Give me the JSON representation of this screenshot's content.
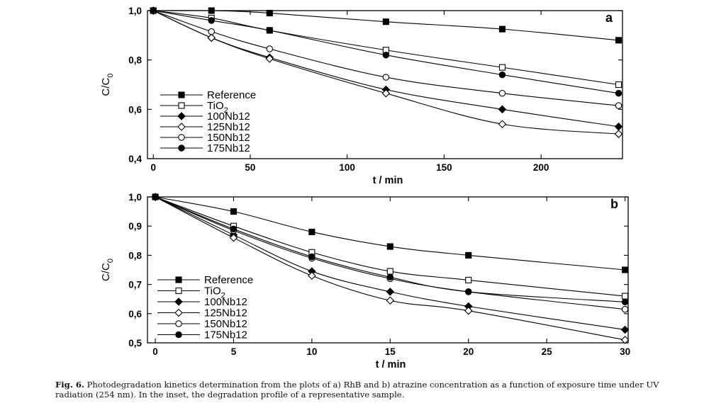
{
  "chart_data": [
    {
      "type": "line",
      "panel_label": "a",
      "title": "",
      "xlabel": "t / min",
      "ylabel": "C/C0",
      "ylabel_main": "C/C",
      "ylabel_sub": "0",
      "xlim": [
        -3,
        242
      ],
      "ylim": [
        0.4,
        1.0
      ],
      "xticks": [
        0,
        50,
        100,
        150,
        200
      ],
      "yticks": [
        0.4,
        0.6,
        0.8,
        1.0
      ],
      "ytick_labels": [
        "0,4",
        "0,6",
        "0,8",
        "1,0"
      ],
      "xtick_labels": [
        "0",
        "50",
        "100",
        "150",
        "200"
      ],
      "series": [
        {
          "name": "Reference",
          "marker": "square-filled",
          "x": [
            0,
            30,
            60,
            120,
            180,
            240
          ],
          "y": [
            1.0,
            1.0,
            0.99,
            0.955,
            0.925,
            0.88
          ]
        },
        {
          "name": "TiO2",
          "name_main": "TiO",
          "name_sub": "2",
          "marker": "square-open",
          "x": [
            0,
            30,
            60,
            120,
            180,
            240
          ],
          "y": [
            1.0,
            0.97,
            0.92,
            0.84,
            0.77,
            0.7
          ]
        },
        {
          "name": "100Nb12",
          "marker": "diamond-filled",
          "x": [
            0,
            30,
            60,
            120,
            180,
            240
          ],
          "y": [
            1.0,
            0.89,
            0.81,
            0.68,
            0.6,
            0.53
          ]
        },
        {
          "name": "125Nb12",
          "marker": "diamond-open",
          "x": [
            0,
            30,
            60,
            120,
            180,
            240
          ],
          "y": [
            1.0,
            0.89,
            0.805,
            0.665,
            0.54,
            0.5
          ]
        },
        {
          "name": "150Nb12",
          "marker": "circle-open",
          "x": [
            0,
            30,
            60,
            120,
            180,
            240
          ],
          "y": [
            1.0,
            0.915,
            0.845,
            0.73,
            0.665,
            0.615
          ]
        },
        {
          "name": "175Nb12",
          "marker": "circle-filled",
          "x": [
            0,
            30,
            60,
            120,
            180,
            240
          ],
          "y": [
            1.0,
            0.96,
            0.92,
            0.82,
            0.74,
            0.665
          ]
        }
      ],
      "legend_position": "lower-left",
      "grid": false
    },
    {
      "type": "line",
      "panel_label": "b",
      "title": "",
      "xlabel": "t / min",
      "ylabel": "C/C0",
      "ylabel_main": "C/C",
      "ylabel_sub": "0",
      "xlim": [
        -0.5,
        30.2
      ],
      "ylim": [
        0.5,
        1.0
      ],
      "xticks": [
        0,
        5,
        10,
        15,
        20,
        25,
        30
      ],
      "yticks": [
        0.5,
        0.6,
        0.7,
        0.8,
        0.9,
        1.0
      ],
      "ytick_labels": [
        "0,5",
        "0,6",
        "0,7",
        "0,8",
        "0,9",
        "1,0"
      ],
      "xtick_labels": [
        "0",
        "5",
        "10",
        "15",
        "20",
        "25",
        "30"
      ],
      "series": [
        {
          "name": "Reference",
          "marker": "square-filled",
          "x": [
            0,
            5,
            10,
            15,
            20,
            30
          ],
          "y": [
            1.0,
            0.95,
            0.88,
            0.83,
            0.8,
            0.75
          ]
        },
        {
          "name": "TiO2",
          "name_main": "TiO",
          "name_sub": "2",
          "marker": "square-open",
          "x": [
            0,
            5,
            10,
            15,
            20,
            30
          ],
          "y": [
            1.0,
            0.9,
            0.81,
            0.745,
            0.715,
            0.66
          ]
        },
        {
          "name": "100Nb12",
          "marker": "diamond-filled",
          "x": [
            0,
            5,
            10,
            15,
            20,
            30
          ],
          "y": [
            1.0,
            0.87,
            0.745,
            0.675,
            0.625,
            0.545
          ]
        },
        {
          "name": "125Nb12",
          "marker": "diamond-open",
          "x": [
            0,
            5,
            10,
            15,
            20,
            30
          ],
          "y": [
            1.0,
            0.86,
            0.73,
            0.645,
            0.61,
            0.51
          ]
        },
        {
          "name": "150Nb12",
          "marker": "circle-open",
          "x": [
            0,
            5,
            10,
            15,
            20,
            30
          ],
          "y": [
            1.0,
            0.885,
            0.79,
            0.72,
            0.675,
            0.615
          ]
        },
        {
          "name": "175Nb12",
          "marker": "circle-filled",
          "x": [
            0,
            5,
            10,
            15,
            20,
            30
          ],
          "y": [
            1.0,
            0.89,
            0.795,
            0.725,
            0.675,
            0.64
          ]
        }
      ],
      "legend_position": "lower-left",
      "grid": false
    }
  ],
  "caption": {
    "label": "Fig. 6.",
    "text": "Photodegradation kinetics determination from the plots of a) RhB and b) atrazine concentration as a function of exposure time under UV radiation (254 nm). In the inset, the degradation profile of a representative sample."
  }
}
